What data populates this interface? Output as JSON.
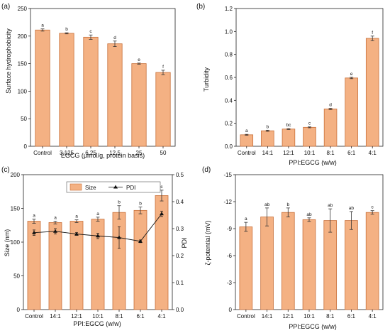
{
  "colors": {
    "bar_fill": "#f4b183",
    "bar_stroke": "#c8703a",
    "axis": "#222222",
    "text": "#111111",
    "line": "#111111"
  },
  "chart_data": [
    {
      "panel": "(a)",
      "type": "bar",
      "categories": [
        "Control",
        "3.125",
        "6.25",
        "12.5",
        "25",
        "50"
      ],
      "values": [
        211,
        205,
        198,
        186,
        150,
        134
      ],
      "errors": [
        2,
        1,
        4,
        5,
        1,
        4
      ],
      "letters": [
        "a",
        "b",
        "c",
        "d",
        "e",
        "f"
      ],
      "xlabel": "EGCG (μmol/g, protein basis)",
      "ylabel": "Surface hydrophobicity",
      "ylim": [
        0,
        250
      ],
      "yticks": [
        0,
        50,
        100,
        150,
        200,
        250
      ]
    },
    {
      "panel": "(b)",
      "type": "bar",
      "categories": [
        "Control",
        "14:1",
        "12:1",
        "10:1",
        "8:1",
        "6:1",
        "4:1"
      ],
      "values": [
        0.1,
        0.135,
        0.15,
        0.165,
        0.325,
        0.595,
        0.94
      ],
      "errors": [
        0.004,
        0.005,
        0.004,
        0.004,
        0.006,
        0.006,
        0.02
      ],
      "letters": [
        "a",
        "b",
        "bc",
        "c",
        "d",
        "e",
        "f"
      ],
      "xlabel": "PPI:EGCG (w/w)",
      "ylabel": "Turbidity",
      "ylim": [
        0,
        1.2
      ],
      "yticks": [
        "0.0",
        "0.2",
        "0.4",
        "0.6",
        "0.8",
        "1.0",
        "1.2"
      ]
    },
    {
      "panel": "(c)",
      "type": "bar",
      "categories": [
        "Control",
        "14:1",
        "12:1",
        "10:1",
        "8:1",
        "6:1",
        "4:1"
      ],
      "values": [
        131,
        129,
        131,
        134,
        144,
        147,
        169
      ],
      "errors": [
        3,
        2,
        2,
        3,
        10,
        5,
        8
      ],
      "letters": [
        "a",
        "a",
        "a",
        "a",
        "b",
        "b",
        "c"
      ],
      "pdi": [
        0.285,
        0.29,
        0.28,
        0.273,
        0.267,
        0.253,
        0.355
      ],
      "pdi_errors": [
        0.01,
        0.01,
        0.005,
        0.01,
        0.04,
        0.005,
        0.01
      ],
      "xlabel": "PPI:EGCG (w/w)",
      "ylabel": "Size (nm)",
      "y2label": "PDI",
      "ylim": [
        0,
        200
      ],
      "yticks": [
        0,
        50,
        100,
        150,
        200
      ],
      "y2lim": [
        0,
        0.5
      ],
      "y2ticks": [
        "0.0",
        "0.1",
        "0.2",
        "0.3",
        "0.4",
        "0.5"
      ],
      "legend": [
        "Size",
        "PDI"
      ]
    },
    {
      "panel": "(d)",
      "type": "bar",
      "categories": [
        "Control",
        "14:1",
        "12:1",
        "10:1",
        "8:1",
        "6:1",
        "4:1"
      ],
      "values": [
        -9.2,
        -10.3,
        -10.8,
        -10.0,
        -9.9,
        -9.9,
        -10.8
      ],
      "errors": [
        0.5,
        1.0,
        0.5,
        0.2,
        1.3,
        1.0,
        0.2
      ],
      "letters": [
        "a",
        "ab",
        "b",
        "ab",
        "ab",
        "ab",
        "c"
      ],
      "xlabel": "PPI:EGCG (w/w)",
      "ylabel": "ζ-potential (mV)",
      "ylim": [
        0,
        -15
      ],
      "yticks": [
        0,
        -3,
        -6,
        -9,
        -12,
        -15
      ]
    }
  ]
}
